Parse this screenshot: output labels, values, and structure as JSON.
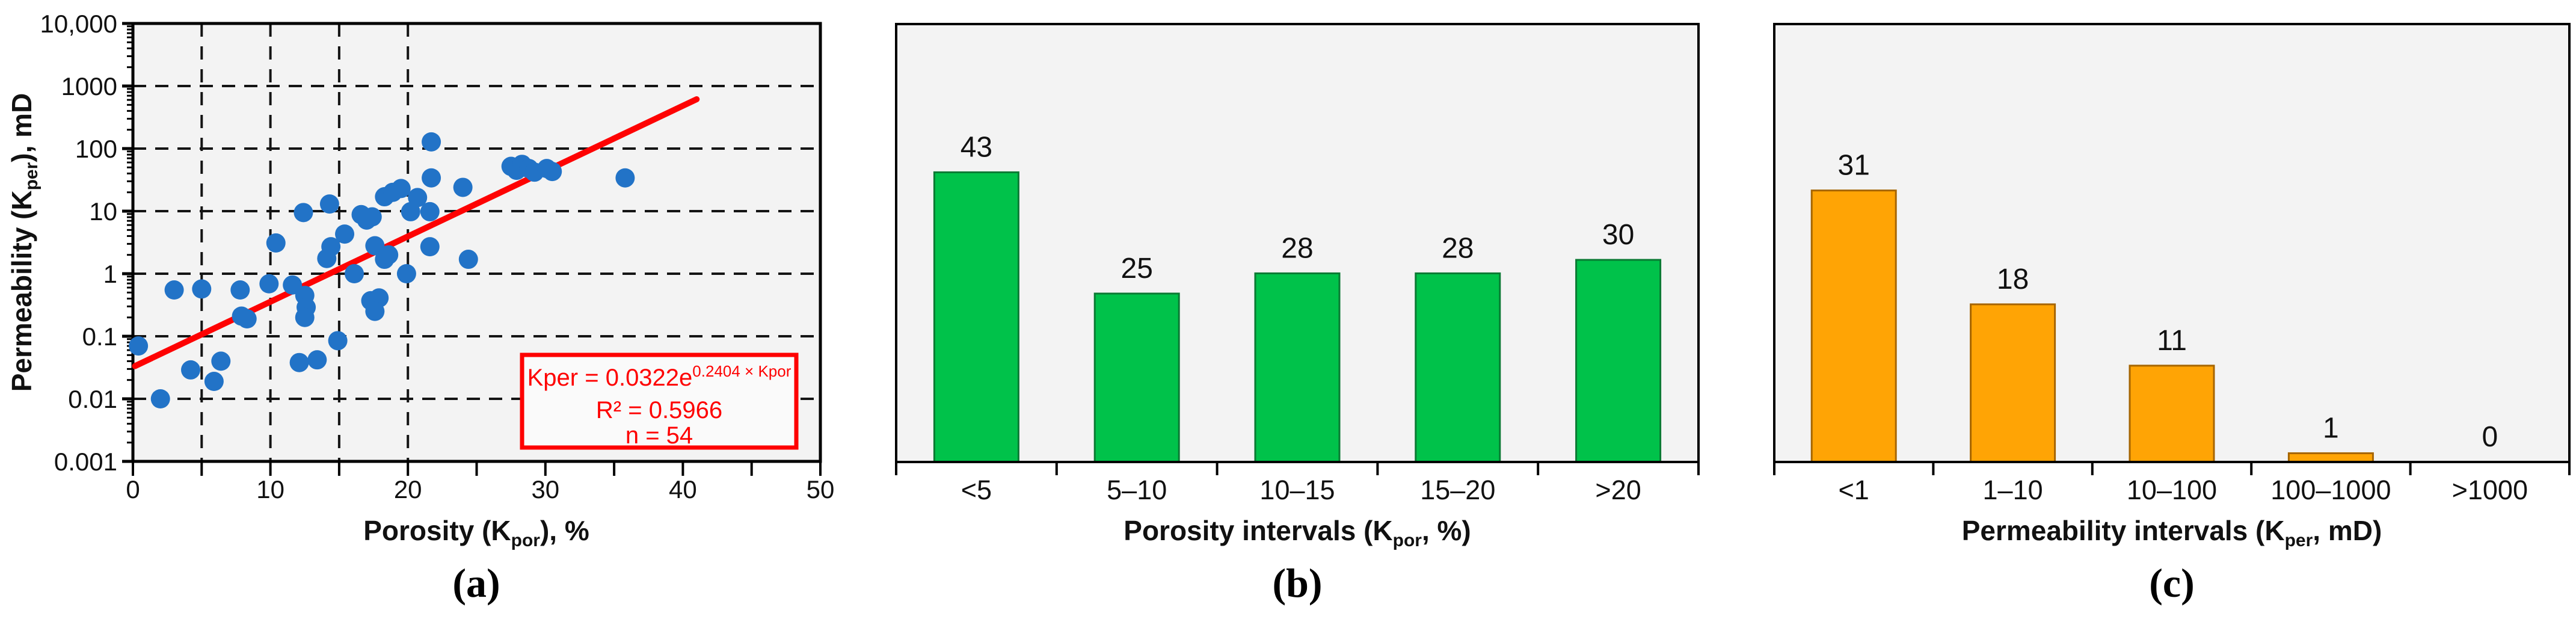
{
  "panels": {
    "a": "(a)",
    "b": "(b)",
    "c": "(c)"
  },
  "colors": {
    "page_bg": "#ffffff",
    "plot_bg": "#f3f3f3",
    "frame": "#000000",
    "grid": "#141414",
    "text": "#111111",
    "point_blue": "#2273C7",
    "trend_red": "#FE0202",
    "equation_red": "#FE0000",
    "equation_bg": "#fafafa",
    "bar_green": "#00C24A",
    "bar_green_edge": "#0A7A33",
    "bar_orange": "#FFA405",
    "bar_orange_edge": "#A66500"
  },
  "chart_data": [
    {
      "id": "scatter-permeability-vs-porosity",
      "type": "scatter",
      "title": "",
      "xlabel_parts": [
        {
          "t": "Porosity (K"
        },
        {
          "sub": "por"
        },
        {
          "t": "), %"
        }
      ],
      "ylabel_parts": [
        {
          "t": "Permeability (K"
        },
        {
          "sub": "per"
        },
        {
          "t": "), mD"
        }
      ],
      "xlim": [
        0,
        50
      ],
      "ylim_log": [
        0.001,
        10000
      ],
      "x_tick_step": 5,
      "x_tick_labels": [
        "0",
        "10",
        "20",
        "30",
        "40",
        "50"
      ],
      "x_tick_label_values": [
        0,
        10,
        20,
        30,
        40,
        50
      ],
      "y_tick_labels": [
        "10,000",
        "1000",
        "100",
        "10",
        "1",
        "0.1",
        "0.01",
        "0.001"
      ],
      "y_tick_values": [
        10000,
        1000,
        100,
        10,
        1,
        0.1,
        0.01,
        0.001
      ],
      "x_gridlines": [
        5,
        10,
        15,
        20
      ],
      "y_gridlines": [
        1000,
        100,
        10,
        1,
        0.1,
        0.01
      ],
      "grid_dashed": true,
      "points": [
        [
          0.4,
          0.07
        ],
        [
          2,
          0.01
        ],
        [
          3,
          0.55
        ],
        [
          4.2,
          0.029
        ],
        [
          5,
          0.57
        ],
        [
          5.9,
          0.019
        ],
        [
          6.4,
          0.04
        ],
        [
          7.8,
          0.55
        ],
        [
          7.9,
          0.21
        ],
        [
          8.3,
          0.19
        ],
        [
          9.9,
          0.69
        ],
        [
          10.4,
          3.1
        ],
        [
          11.6,
          0.66
        ],
        [
          12.1,
          0.038
        ],
        [
          12.4,
          9.5
        ],
        [
          12.5,
          0.45
        ],
        [
          12.6,
          0.29
        ],
        [
          12.5,
          0.2
        ],
        [
          13.4,
          0.042
        ],
        [
          14.1,
          1.75
        ],
        [
          14.4,
          2.7
        ],
        [
          14.3,
          13
        ],
        [
          14.9,
          0.085
        ],
        [
          15.4,
          4.3
        ],
        [
          16.1,
          1.0
        ],
        [
          16.6,
          8.8
        ],
        [
          17.0,
          7.2
        ],
        [
          17.4,
          8.1
        ],
        [
          17.3,
          0.37
        ],
        [
          17.9,
          0.41
        ],
        [
          17.6,
          0.25
        ],
        [
          17.6,
          2.8
        ],
        [
          18.3,
          1.7
        ],
        [
          18.6,
          2.0
        ],
        [
          18.3,
          17
        ],
        [
          18.9,
          20
        ],
        [
          19.5,
          23
        ],
        [
          19.9,
          1.0
        ],
        [
          20.7,
          16.5
        ],
        [
          20.2,
          9.8
        ],
        [
          21.6,
          9.8
        ],
        [
          21.6,
          2.7
        ],
        [
          21.7,
          128
        ],
        [
          21.7,
          34
        ],
        [
          24.0,
          24
        ],
        [
          24.4,
          1.7
        ],
        [
          27.5,
          52
        ],
        [
          27.9,
          45
        ],
        [
          28.3,
          56
        ],
        [
          28.8,
          48
        ],
        [
          29.2,
          42
        ],
        [
          30.1,
          48
        ],
        [
          30.5,
          43
        ],
        [
          35.8,
          34
        ]
      ],
      "trend": {
        "a": 0.0322,
        "b": 0.2404,
        "x_start": 0.15,
        "x_end": 41
      },
      "annotation": {
        "line1_parts": [
          {
            "t": "Kper = 0.0322e"
          },
          {
            "sup": "0.2404 × Kpor"
          }
        ],
        "line2": "R² = 0.5966",
        "line3": "n = 54"
      }
    },
    {
      "id": "bar-porosity-intervals",
      "type": "bar",
      "categories": [
        "<5",
        "5–10",
        "10–15",
        "15–20",
        ">20"
      ],
      "values": [
        43,
        25,
        28,
        28,
        30
      ],
      "xlabel_parts": [
        {
          "t": "Porosity intervals (K"
        },
        {
          "sub": "por"
        },
        {
          "t": ", %)"
        }
      ],
      "ylabel": "",
      "ylim": [
        0,
        65
      ],
      "grid": false,
      "value_labels": [
        "43",
        "25",
        "28",
        "28",
        "30"
      ]
    },
    {
      "id": "bar-permeability-intervals",
      "type": "bar",
      "categories": [
        "<1",
        "1–10",
        "10–100",
        "100–1000",
        ">1000"
      ],
      "values": [
        31,
        18,
        11,
        1,
        0
      ],
      "xlabel_parts": [
        {
          "t": "Permeability intervals (K"
        },
        {
          "sub": "per"
        },
        {
          "t": ", mD)"
        }
      ],
      "ylabel": "",
      "ylim": [
        0,
        50
      ],
      "grid": false,
      "value_labels": [
        "31",
        "18",
        "11",
        "1",
        "0"
      ]
    }
  ]
}
